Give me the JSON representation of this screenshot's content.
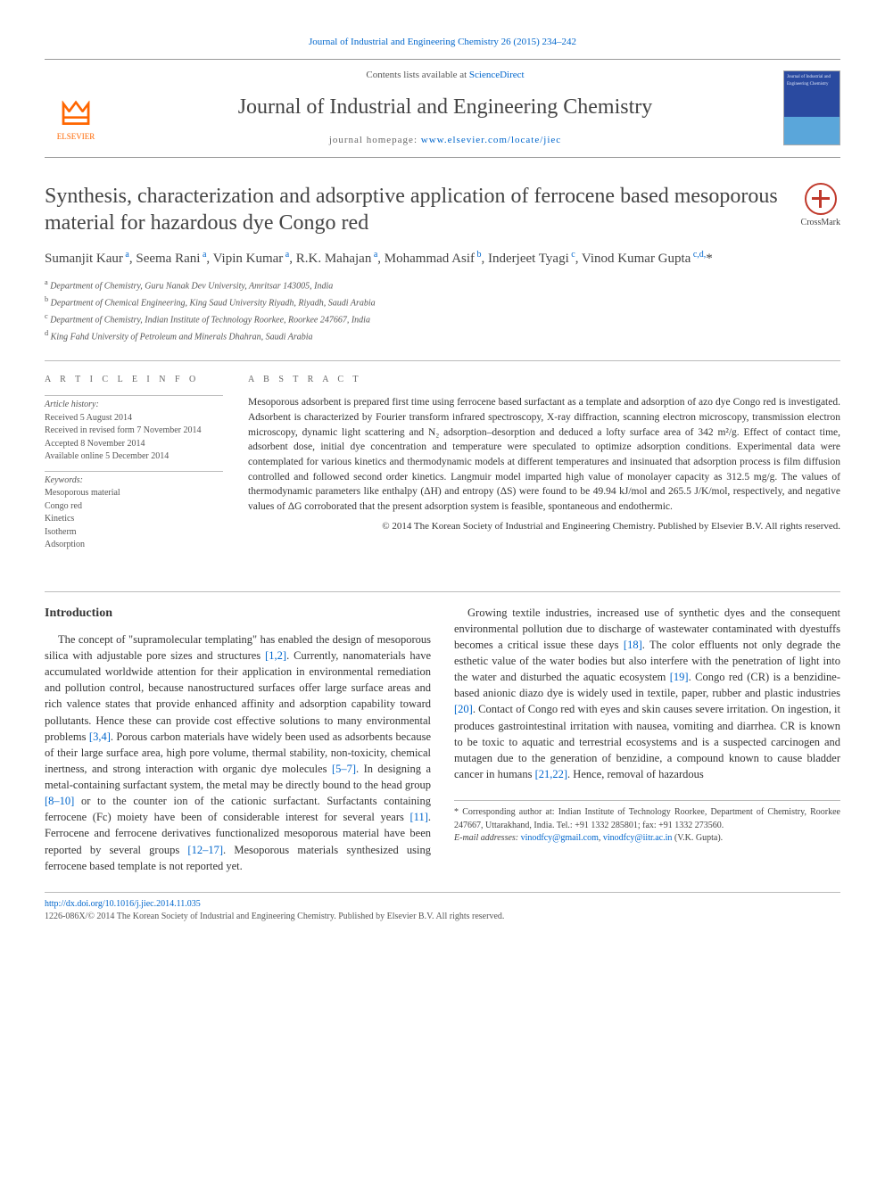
{
  "citation": "Journal of Industrial and Engineering Chemistry 26 (2015) 234–242",
  "header": {
    "contents_prefix": "Contents lists available at ",
    "contents_link": "ScienceDirect",
    "journal_name": "Journal of Industrial and Engineering Chemistry",
    "homepage_prefix": "journal homepage: ",
    "homepage_link": "www.elsevier.com/locate/jiec",
    "elsevier_label": "ELSEVIER"
  },
  "crossmark_label": "CrossMark",
  "title": "Synthesis, characterization and adsorptive application of ferrocene based mesoporous material for hazardous dye Congo red",
  "authors_html": "Sumanjit Kaur<sup> a</sup>, Seema Rani<sup> a</sup>, Vipin Kumar<sup> a</sup>, R.K. Mahajan<sup> a</sup>, Mohammad Asif<sup> b</sup>, Inderjeet Tyagi<sup> c</sup>, Vinod Kumar Gupta<sup> c,d,</sup>*",
  "affiliations": [
    {
      "sup": "a",
      "text": "Department of Chemistry, Guru Nanak Dev University, Amritsar 143005, India"
    },
    {
      "sup": "b",
      "text": "Department of Chemical Engineering, King Saud University Riyadh, Riyadh, Saudi Arabia"
    },
    {
      "sup": "c",
      "text": "Department of Chemistry, Indian Institute of Technology Roorkee, Roorkee 247667, India"
    },
    {
      "sup": "d",
      "text": "King Fahd University of Petroleum and Minerals Dhahran, Saudi Arabia"
    }
  ],
  "article_info": {
    "heading": "A R T I C L E  I N F O",
    "history_head": "Article history:",
    "history": [
      "Received 5 August 2014",
      "Received in revised form 7 November 2014",
      "Accepted 8 November 2014",
      "Available online 5 December 2014"
    ],
    "keywords_head": "Keywords:",
    "keywords": [
      "Mesoporous material",
      "Congo red",
      "Kinetics",
      "Isotherm",
      "Adsorption"
    ]
  },
  "abstract": {
    "heading": "A B S T R A C T",
    "text": "Mesoporous adsorbent is prepared first time using ferrocene based surfactant as a template and adsorption of azo dye Congo red is investigated. Adsorbent is characterized by Fourier transform infrared spectroscopy, X-ray diffraction, scanning electron microscopy, transmission electron microscopy, dynamic light scattering and N₂ adsorption–desorption and deduced a lofty surface area of 342 m²/g. Effect of contact time, adsorbent dose, initial dye concentration and temperature were speculated to optimize adsorption conditions. Experimental data were contemplated for various kinetics and thermodynamic models at different temperatures and insinuated that adsorption process is film diffusion controlled and followed second order kinetics. Langmuir model imparted high value of monolayer capacity as 312.5 mg/g. The values of thermodynamic parameters like enthalpy (ΔH) and entropy (ΔS) were found to be 49.94 kJ/mol and 265.5 J/K/mol, respectively, and negative values of ΔG corroborated that the present adsorption system is feasible, spontaneous and endothermic.",
    "copyright": "© 2014 The Korean Society of Industrial and Engineering Chemistry. Published by Elsevier B.V. All rights reserved."
  },
  "body": {
    "intro_heading": "Introduction",
    "para1_a": "The concept of \"supramolecular templating\" has enabled the design of mesoporous silica with adjustable pore sizes and structures ",
    "ref1": "[1,2]",
    "para1_b": ". Currently, nanomaterials have accumulated worldwide attention for their application in environmental remediation and pollution control, because nanostructured surfaces offer large surface areas and rich valence states that provide enhanced affinity and adsorption capability toward pollutants. Hence these can provide cost effective solutions to many environmental problems ",
    "ref2": "[3,4]",
    "para1_c": ". Porous carbon materials have widely been used as adsorbents because of their large surface area, high pore volume, thermal stability, non-toxicity, chemical inertness, and strong interaction with organic dye molecules ",
    "ref3": "[5–7]",
    "para1_d": ". In designing a metal-containing surfactant system, the metal may be directly bound to the head group ",
    "ref4": "[8–10]",
    "para1_e": " or to the counter ion of the cationic surfactant. Surfactants containing ferrocene (Fc) moiety have been of considerable interest for several years ",
    "ref5": "[11]",
    "para1_f": ". Ferrocene and ferrocene derivatives functionalized mesoporous material have been reported by several groups ",
    "ref6": "[12–17]",
    "para1_g": ". Mesoporous materials synthesized using ferrocene based template is not reported yet.",
    "para2_a": "Growing textile industries, increased use of synthetic dyes and the consequent environmental pollution due to discharge of wastewater contaminated with dyestuffs becomes a critical issue these days ",
    "ref7": "[18]",
    "para2_b": ". The color effluents not only degrade the esthetic value of the water bodies but also interfere with the penetration of light into the water and disturbed the aquatic ecosystem ",
    "ref8": "[19]",
    "para2_c": ". Congo red (CR) is a benzidine-based anionic diazo dye is widely used in textile, paper, rubber and plastic industries ",
    "ref9": "[20]",
    "para2_d": ". Contact of Congo red with eyes and skin causes severe irritation. On ingestion, it produces gastrointestinal irritation with nausea, vomiting and diarrhea. CR is known to be toxic to aquatic and terrestrial ecosystems and is a suspected carcinogen and mutagen due to the generation of benzidine, a compound known to cause bladder cancer in humans ",
    "ref10": "[21,22]",
    "para2_e": ". Hence, removal of hazardous"
  },
  "corr": {
    "star": "*",
    "text": "Corresponding author at: Indian Institute of Technology Roorkee, Department of Chemistry, Roorkee 247667, Uttarakhand, India. Tel.: +91 1332 285801; fax: +91 1332 273560.",
    "email_label": "E-mail addresses: ",
    "email1": "vinodfcy@gmail.com",
    "email_sep": ", ",
    "email2": "vinodfcy@iitr.ac.in",
    "email_tail": " (V.K. Gupta)."
  },
  "footer": {
    "doi": "http://dx.doi.org/10.1016/j.jiec.2014.11.035",
    "issn_line": "1226-086X/© 2014 The Korean Society of Industrial and Engineering Chemistry. Published by Elsevier B.V. All rights reserved."
  },
  "colors": {
    "link": "#0066cc",
    "elsevier_orange": "#ff6600",
    "rule": "#bbbbbb",
    "cover_top": "#2a4aa0",
    "cover_bottom": "#5aa6da"
  }
}
